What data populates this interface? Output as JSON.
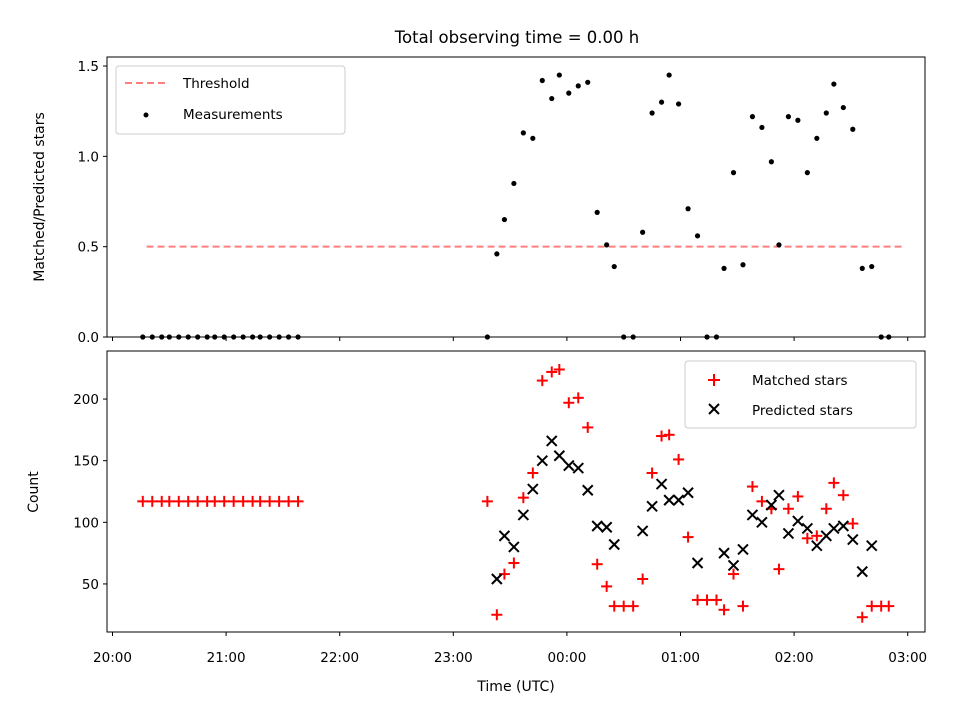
{
  "chart_data": [
    {
      "type": "scatter",
      "title": "Total observing time = 0.00 h",
      "ylabel": "Matched/Predicted stars",
      "xlabel": "",
      "ylim": [
        0,
        1.55
      ],
      "y_ticks": [
        "0.0",
        "0.5",
        "1.0",
        "1.5"
      ],
      "legend_position": "top-left",
      "threshold": {
        "name": "Threshold",
        "value": 0.5,
        "x_start": "20:18",
        "x_end": "02:57",
        "color": "#ff7f7f"
      },
      "series": [
        {
          "name": "Measurements",
          "color": "#000000",
          "marker": "dot",
          "points": [
            [
              "20:16",
              0
            ],
            [
              "20:21",
              0
            ],
            [
              "20:26",
              0
            ],
            [
              "20:30",
              0
            ],
            [
              "20:35",
              0
            ],
            [
              "20:40",
              0
            ],
            [
              "20:45",
              0
            ],
            [
              "20:50",
              0
            ],
            [
              "20:54",
              0
            ],
            [
              "20:59",
              0
            ],
            [
              "21:04",
              0
            ],
            [
              "21:09",
              0
            ],
            [
              "21:14",
              0
            ],
            [
              "21:18",
              0
            ],
            [
              "21:23",
              0
            ],
            [
              "21:28",
              0
            ],
            [
              "21:33",
              0
            ],
            [
              "21:38",
              0
            ],
            [
              "23:18",
              0
            ],
            [
              "23:23",
              0.46
            ],
            [
              "23:27",
              0.65
            ],
            [
              "23:32",
              0.85
            ],
            [
              "23:37",
              1.13
            ],
            [
              "23:42",
              1.1
            ],
            [
              "23:47",
              1.42
            ],
            [
              "23:52",
              1.32
            ],
            [
              "23:56",
              1.45
            ],
            [
              "00:01",
              1.35
            ],
            [
              "00:06",
              1.39
            ],
            [
              "00:11",
              1.41
            ],
            [
              "00:16",
              0.69
            ],
            [
              "00:21",
              0.51
            ],
            [
              "00:25",
              0.39
            ],
            [
              "00:30",
              0
            ],
            [
              "00:35",
              0
            ],
            [
              "00:40",
              0.58
            ],
            [
              "00:45",
              1.24
            ],
            [
              "00:50",
              1.3
            ],
            [
              "00:54",
              1.45
            ],
            [
              "00:59",
              1.29
            ],
            [
              "01:04",
              0.71
            ],
            [
              "01:09",
              0.56
            ],
            [
              "01:14",
              0
            ],
            [
              "01:19",
              0
            ],
            [
              "01:23",
              0.38
            ],
            [
              "01:28",
              0.91
            ],
            [
              "01:33",
              0.4
            ],
            [
              "01:38",
              1.22
            ],
            [
              "01:43",
              1.16
            ],
            [
              "01:48",
              0.97
            ],
            [
              "01:52",
              0.51
            ],
            [
              "01:57",
              1.22
            ],
            [
              "02:02",
              1.2
            ],
            [
              "02:07",
              0.91
            ],
            [
              "02:12",
              1.1
            ],
            [
              "02:17",
              1.24
            ],
            [
              "02:21",
              1.4
            ],
            [
              "02:26",
              1.27
            ],
            [
              "02:31",
              1.15
            ],
            [
              "02:36",
              0.38
            ],
            [
              "02:41",
              0.39
            ],
            [
              "02:46",
              0
            ],
            [
              "02:50",
              0
            ]
          ]
        }
      ]
    },
    {
      "type": "scatter",
      "title": "",
      "xlabel": "Time (UTC)",
      "ylabel": "Count",
      "ylim": [
        11,
        239
      ],
      "y_ticks": [
        "50",
        "100",
        "150",
        "200"
      ],
      "x_ticks": [
        "20:00",
        "21:00",
        "22:00",
        "23:00",
        "00:00",
        "01:00",
        "02:00",
        "03:00"
      ],
      "legend_position": "top-right",
      "series": [
        {
          "name": "Matched stars",
          "color": "#ff0000",
          "marker": "plus",
          "points": [
            [
              "20:16",
              117
            ],
            [
              "20:21",
              117
            ],
            [
              "20:26",
              117
            ],
            [
              "20:30",
              117
            ],
            [
              "20:35",
              117
            ],
            [
              "20:40",
              117
            ],
            [
              "20:45",
              117
            ],
            [
              "20:50",
              117
            ],
            [
              "20:54",
              117
            ],
            [
              "20:59",
              117
            ],
            [
              "21:04",
              117
            ],
            [
              "21:09",
              117
            ],
            [
              "21:14",
              117
            ],
            [
              "21:18",
              117
            ],
            [
              "21:23",
              117
            ],
            [
              "21:28",
              117
            ],
            [
              "21:33",
              117
            ],
            [
              "21:38",
              117
            ],
            [
              "23:18",
              117
            ],
            [
              "23:23",
              25
            ],
            [
              "23:27",
              58
            ],
            [
              "23:32",
              67
            ],
            [
              "23:37",
              120
            ],
            [
              "23:42",
              140
            ],
            [
              "23:47",
              215
            ],
            [
              "23:52",
              222
            ],
            [
              "23:56",
              224
            ],
            [
              "00:01",
              197
            ],
            [
              "00:06",
              201
            ],
            [
              "00:11",
              177
            ],
            [
              "00:16",
              66
            ],
            [
              "00:21",
              48
            ],
            [
              "00:25",
              32
            ],
            [
              "00:30",
              32
            ],
            [
              "00:35",
              32
            ],
            [
              "00:40",
              54
            ],
            [
              "00:45",
              140
            ],
            [
              "00:50",
              170
            ],
            [
              "00:54",
              171
            ],
            [
              "00:59",
              151
            ],
            [
              "01:04",
              88
            ],
            [
              "01:09",
              37
            ],
            [
              "01:14",
              37
            ],
            [
              "01:19",
              37
            ],
            [
              "01:23",
              29
            ],
            [
              "01:28",
              58
            ],
            [
              "01:33",
              32
            ],
            [
              "01:38",
              129
            ],
            [
              "01:43",
              117
            ],
            [
              "01:48",
              111
            ],
            [
              "01:52",
              62
            ],
            [
              "01:57",
              111
            ],
            [
              "02:02",
              121
            ],
            [
              "02:07",
              87
            ],
            [
              "02:12",
              89
            ],
            [
              "02:17",
              111
            ],
            [
              "02:21",
              132
            ],
            [
              "02:26",
              122
            ],
            [
              "02:31",
              99
            ],
            [
              "02:36",
              23
            ],
            [
              "02:41",
              32
            ],
            [
              "02:46",
              32
            ],
            [
              "02:50",
              32
            ]
          ]
        },
        {
          "name": "Predicted stars",
          "color": "#000000",
          "marker": "x",
          "points": [
            [
              "23:23",
              54
            ],
            [
              "23:27",
              89
            ],
            [
              "23:32",
              80
            ],
            [
              "23:37",
              106
            ],
            [
              "23:42",
              127
            ],
            [
              "23:47",
              150
            ],
            [
              "23:52",
              166
            ],
            [
              "23:56",
              154
            ],
            [
              "00:01",
              146
            ],
            [
              "00:06",
              144
            ],
            [
              "00:11",
              126
            ],
            [
              "00:16",
              97
            ],
            [
              "00:21",
              96
            ],
            [
              "00:25",
              82
            ],
            [
              "00:40",
              93
            ],
            [
              "00:45",
              113
            ],
            [
              "00:50",
              131
            ],
            [
              "00:54",
              118
            ],
            [
              "00:59",
              118
            ],
            [
              "01:04",
              124
            ],
            [
              "01:09",
              67
            ],
            [
              "01:23",
              75
            ],
            [
              "01:28",
              65
            ],
            [
              "01:33",
              78
            ],
            [
              "01:38",
              106
            ],
            [
              "01:43",
              100
            ],
            [
              "01:48",
              114
            ],
            [
              "01:52",
              122
            ],
            [
              "01:57",
              91
            ],
            [
              "02:02",
              101
            ],
            [
              "02:07",
              95
            ],
            [
              "02:12",
              81
            ],
            [
              "02:17",
              89
            ],
            [
              "02:21",
              95
            ],
            [
              "02:26",
              97
            ],
            [
              "02:31",
              86
            ],
            [
              "02:36",
              60
            ],
            [
              "02:41",
              81
            ]
          ]
        }
      ]
    }
  ]
}
